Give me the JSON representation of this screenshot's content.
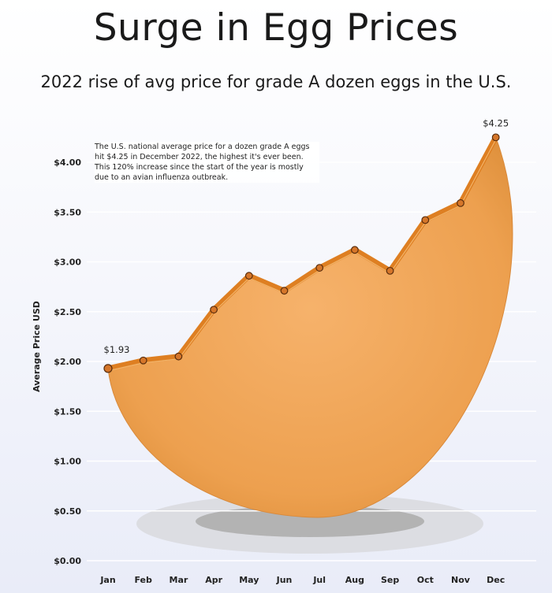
{
  "header": {
    "title": "Surge in Egg Prices",
    "subtitle": "2022 rise of avg price for grade A dozen eggs in the U.S."
  },
  "annotation": "The U.S. national average price for a dozen grade A eggs hit $4.25 in December 2022, the highest it's ever been. This 120% increase since the start of the year is mostly due to an avian influenza outbreak.",
  "chart_data": {
    "type": "area",
    "title": "Surge in Egg Prices",
    "subtitle": "2022 rise of avg price for grade A dozen eggs in the U.S.",
    "xlabel": "",
    "ylabel": "Average Price USD",
    "categories": [
      "Jan",
      "Feb",
      "Mar",
      "Apr",
      "May",
      "Jun",
      "Jul",
      "Aug",
      "Sep",
      "Oct",
      "Nov",
      "Dec"
    ],
    "values": [
      1.93,
      2.01,
      2.05,
      2.52,
      2.86,
      2.71,
      2.94,
      3.12,
      2.91,
      3.42,
      3.59,
      4.25
    ],
    "ylim": [
      0,
      4.5
    ],
    "yticks": [
      0,
      0.5,
      1,
      1.5,
      2,
      2.5,
      3,
      3.5,
      4
    ],
    "ytick_labels": [
      "$0.00",
      "$0.50",
      "$1.00",
      "$1.50",
      "$2.00",
      "$2.50",
      "$3.00",
      "$3.50",
      "$4.00"
    ],
    "data_labels": [
      {
        "category": "Jan",
        "text": "$1.93"
      },
      {
        "category": "Dec",
        "text": "$4.25"
      }
    ],
    "grid": true,
    "colors": {
      "fill": "#eda04f",
      "line": "#d97a1e",
      "marker": "#c96c19",
      "grid": "#ffffff"
    }
  }
}
